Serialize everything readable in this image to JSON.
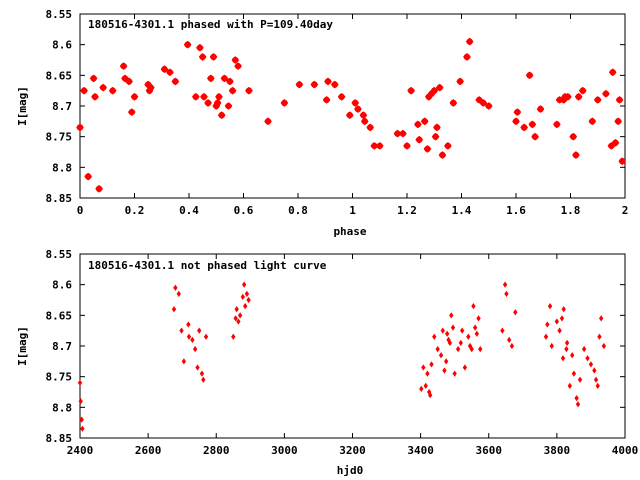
{
  "chart_data": [
    {
      "type": "scatter",
      "title": "180516-4301.1 phased with P=109.40day",
      "xlabel": "phase",
      "ylabel": "I[mag]",
      "xlim": [
        0,
        2
      ],
      "ylim": [
        8.85,
        8.55
      ],
      "y_axis_inverted": true,
      "grid": false,
      "x_ticks": [
        "0",
        "0.2",
        "0.4",
        "0.6",
        "0.8",
        "1",
        "1.2",
        "1.4",
        "1.6",
        "1.8",
        "2"
      ],
      "y_ticks": [
        "8.55",
        "8.6",
        "8.65",
        "8.7",
        "8.75",
        "8.8",
        "8.85"
      ],
      "marker_color": "#ff0000",
      "series": [
        {
          "x": [
            0.0,
            0.015,
            0.03,
            0.05,
            0.055,
            0.07,
            0.085,
            0.12,
            0.16,
            0.165,
            0.18,
            0.19,
            0.2,
            0.25,
            0.255,
            0.26,
            0.31,
            0.33,
            0.35,
            0.395,
            0.425,
            0.44,
            0.45,
            0.455,
            0.47,
            0.48,
            0.49,
            0.5,
            0.505,
            0.51,
            0.52,
            0.53,
            0.545,
            0.55,
            0.56,
            0.57,
            0.58,
            0.62,
            0.69,
            0.75,
            0.805,
            0.86,
            0.905,
            0.91,
            0.935,
            0.96,
            0.99,
            1.01,
            1.02,
            1.04,
            1.045,
            1.065,
            1.08,
            1.1,
            1.165,
            1.185,
            1.2,
            1.215,
            1.24,
            1.245,
            1.265,
            1.275,
            1.28,
            1.29,
            1.3,
            1.305,
            1.31,
            1.32,
            1.33,
            1.35,
            1.37,
            1.395,
            1.42,
            1.43,
            1.465,
            1.48,
            1.5,
            1.6,
            1.605,
            1.63,
            1.65,
            1.66,
            1.67,
            1.69,
            1.75,
            1.76,
            1.775,
            1.78,
            1.79,
            1.81,
            1.82,
            1.83,
            1.845,
            1.88,
            1.9,
            1.93,
            1.95,
            1.955,
            1.965,
            1.975,
            1.98,
            1.99
          ],
          "y": [
            8.735,
            8.675,
            8.815,
            8.655,
            8.685,
            8.835,
            8.67,
            8.675,
            8.635,
            8.655,
            8.66,
            8.71,
            8.685,
            8.665,
            8.675,
            8.67,
            8.64,
            8.645,
            8.66,
            8.6,
            8.685,
            8.605,
            8.62,
            8.685,
            8.695,
            8.655,
            8.62,
            8.7,
            8.695,
            8.685,
            8.715,
            8.655,
            8.7,
            8.66,
            8.675,
            8.625,
            8.635,
            8.675,
            8.725,
            8.695,
            8.665,
            8.665,
            8.69,
            8.66,
            8.665,
            8.685,
            8.715,
            8.695,
            8.705,
            8.715,
            8.725,
            8.735,
            8.765,
            8.765,
            8.745,
            8.745,
            8.765,
            8.675,
            8.73,
            8.755,
            8.725,
            8.77,
            8.685,
            8.68,
            8.675,
            8.75,
            8.735,
            8.67,
            8.78,
            8.765,
            8.695,
            8.66,
            8.62,
            8.595,
            8.69,
            8.695,
            8.7,
            8.725,
            8.71,
            8.735,
            8.65,
            8.73,
            8.75,
            8.705,
            8.73,
            8.69,
            8.69,
            8.685,
            8.685,
            8.75,
            8.78,
            8.685,
            8.675,
            8.725,
            8.69,
            8.68,
            8.765,
            8.645,
            8.76,
            8.725,
            8.69,
            8.79
          ]
        }
      ]
    },
    {
      "type": "scatter",
      "title": "180516-4301.1 not phased light curve",
      "xlabel": "hjd0",
      "ylabel": "I[mag]",
      "xlim": [
        2400,
        4000
      ],
      "ylim": [
        8.85,
        8.55
      ],
      "y_axis_inverted": true,
      "grid": false,
      "x_ticks": [
        "2400",
        "2600",
        "2800",
        "3000",
        "3200",
        "3400",
        "3600",
        "3800",
        "4000"
      ],
      "y_ticks": [
        "8.55",
        "8.6",
        "8.65",
        "8.7",
        "8.75",
        "8.8",
        "8.85"
      ],
      "marker_color": "#ff0000",
      "series": [
        {
          "x": [
            2400,
            2402,
            2405,
            2407,
            2676,
            2680,
            2690,
            2698,
            2705,
            2718,
            2720,
            2730,
            2738,
            2745,
            2750,
            2758,
            2762,
            2770,
            2850,
            2857,
            2860,
            2865,
            2870,
            2878,
            2882,
            2885,
            2890,
            2895,
            3402,
            3408,
            3415,
            3420,
            3425,
            3428,
            3432,
            3440,
            3450,
            3460,
            3465,
            3470,
            3475,
            3478,
            3482,
            3486,
            3490,
            3495,
            3500,
            3510,
            3518,
            3522,
            3530,
            3540,
            3545,
            3550,
            3555,
            3560,
            3565,
            3570,
            3575,
            3640,
            3648,
            3652,
            3660,
            3668,
            3678,
            3768,
            3772,
            3780,
            3785,
            3800,
            3808,
            3815,
            3818,
            3820,
            3828,
            3830,
            3838,
            3845,
            3850,
            3858,
            3862,
            3868,
            3880,
            3890,
            3900,
            3910,
            3915,
            3920,
            3925,
            3930,
            3938
          ],
          "y": [
            8.76,
            8.79,
            8.82,
            8.835,
            8.64,
            8.605,
            8.615,
            8.675,
            8.725,
            8.665,
            8.685,
            8.69,
            8.705,
            8.735,
            8.675,
            8.745,
            8.755,
            8.685,
            8.685,
            8.655,
            8.64,
            8.66,
            8.65,
            8.62,
            8.6,
            8.635,
            8.615,
            8.625,
            8.77,
            8.735,
            8.765,
            8.745,
            8.775,
            8.78,
            8.73,
            8.685,
            8.705,
            8.715,
            8.675,
            8.74,
            8.725,
            8.68,
            8.69,
            8.695,
            8.65,
            8.67,
            8.745,
            8.705,
            8.695,
            8.675,
            8.735,
            8.685,
            8.7,
            8.705,
            8.635,
            8.67,
            8.68,
            8.655,
            8.705,
            8.675,
            8.6,
            8.615,
            8.69,
            8.7,
            8.645,
            8.685,
            8.665,
            8.635,
            8.7,
            8.66,
            8.675,
            8.655,
            8.72,
            8.64,
            8.705,
            8.695,
            8.765,
            8.715,
            8.745,
            8.785,
            8.795,
            8.755,
            8.705,
            8.72,
            8.73,
            8.74,
            8.755,
            8.765,
            8.685,
            8.655,
            8.7
          ]
        }
      ]
    }
  ]
}
